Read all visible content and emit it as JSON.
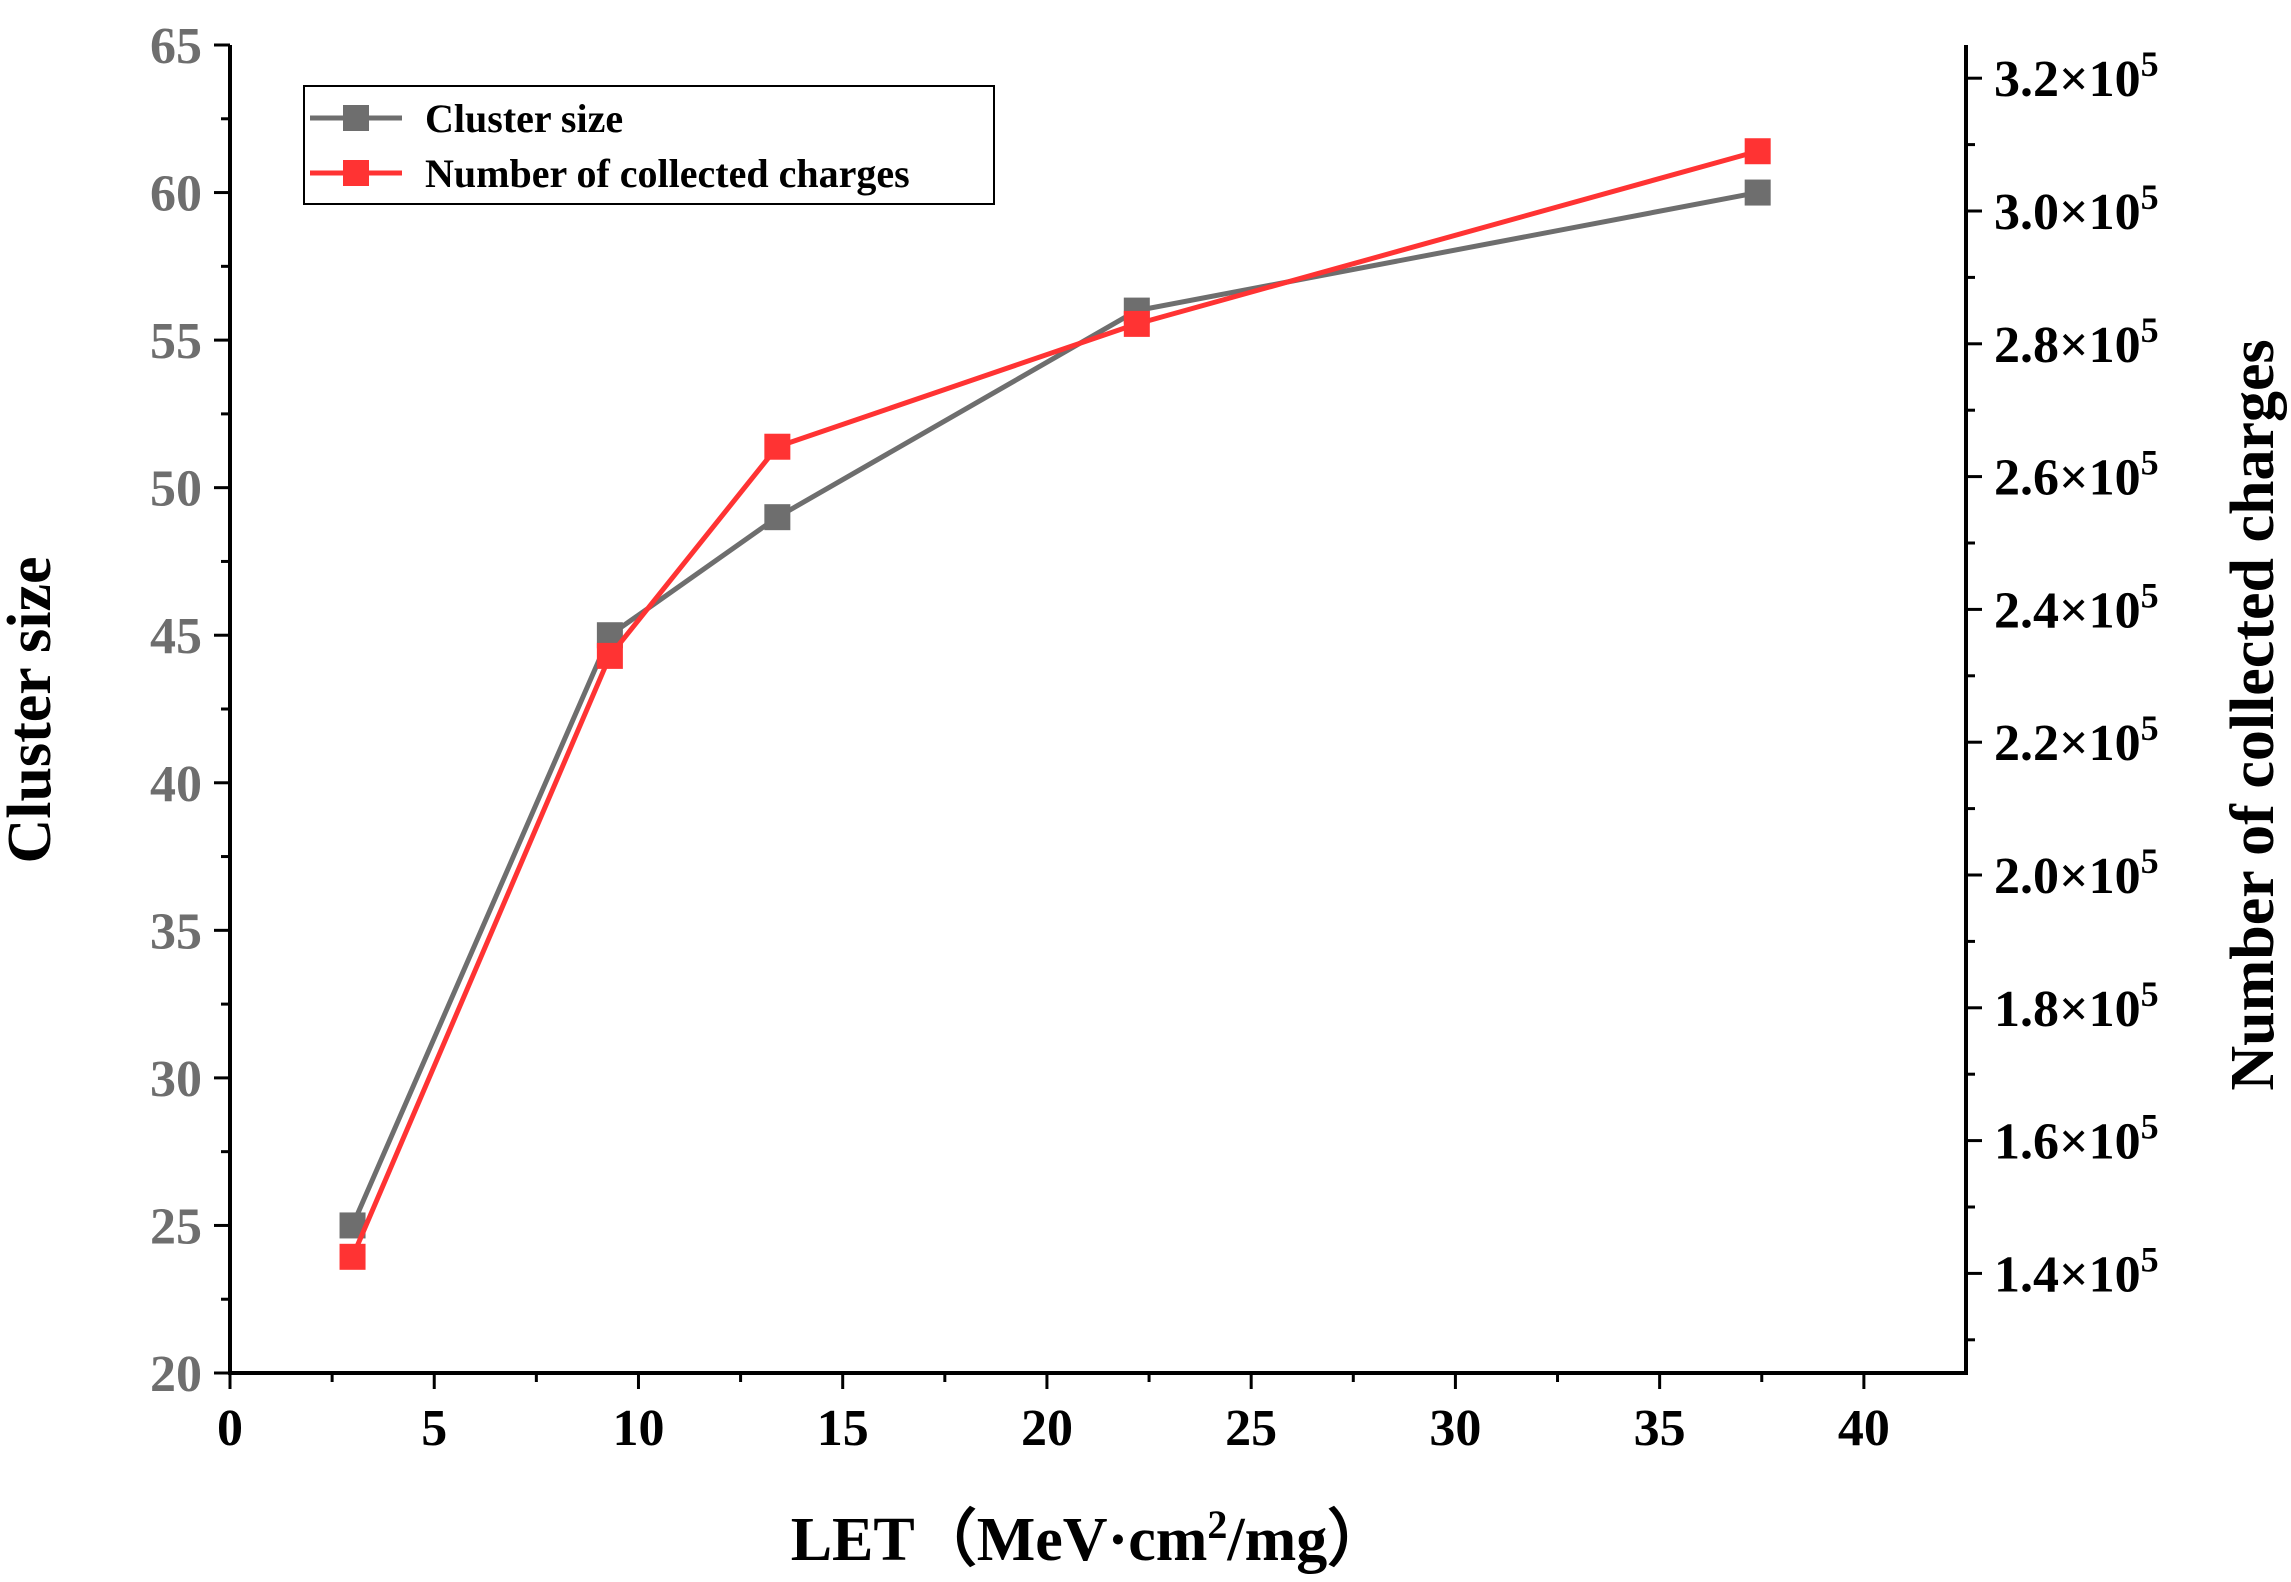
{
  "chart_data": {
    "type": "line",
    "xlabel_prefix": "LET（MeV·cm",
    "xlabel_sup": "2",
    "xlabel_suffix": "/mg）",
    "ylabel_left": "Cluster size",
    "ylabel_right": "Number of collected charges",
    "xlim": [
      0,
      42.5
    ],
    "ylim_left": [
      20,
      65
    ],
    "ylim_right": [
      125000,
      325000
    ],
    "x_ticks": [
      "0",
      "5",
      "10",
      "15",
      "20",
      "25",
      "30",
      "35",
      "40"
    ],
    "y_left_ticks": [
      "20",
      "25",
      "30",
      "35",
      "40",
      "45",
      "50",
      "55",
      "60",
      "65"
    ],
    "y_right_ticks": [
      {
        "mantissa": "1.4",
        "times": "×10",
        "exp": "5",
        "value": 140000
      },
      {
        "mantissa": "1.6",
        "times": "×10",
        "exp": "5",
        "value": 160000
      },
      {
        "mantissa": "1.8",
        "times": "×10",
        "exp": "5",
        "value": 180000
      },
      {
        "mantissa": "2.0",
        "times": "×10",
        "exp": "5",
        "value": 200000
      },
      {
        "mantissa": "2.2",
        "times": "×10",
        "exp": "5",
        "value": 220000
      },
      {
        "mantissa": "2.4",
        "times": "×10",
        "exp": "5",
        "value": 240000
      },
      {
        "mantissa": "2.6",
        "times": "×10",
        "exp": "5",
        "value": 260000
      },
      {
        "mantissa": "2.8",
        "times": "×10",
        "exp": "5",
        "value": 280000
      },
      {
        "mantissa": "3.0",
        "times": "×10",
        "exp": "5",
        "value": 300000
      },
      {
        "mantissa": "3.2",
        "times": "×10",
        "exp": "5",
        "value": 320000
      }
    ],
    "series": [
      {
        "name": "Cluster size",
        "axis": "left",
        "color": "#6e6e6e",
        "x": [
          3,
          9.3,
          13.4,
          22.2,
          37.4
        ],
        "y": [
          25,
          45,
          49,
          56,
          60
        ]
      },
      {
        "name": "Number of collected charges",
        "axis": "right",
        "color": "#ff3333",
        "x": [
          3,
          9.3,
          13.4,
          22.2,
          37.4
        ],
        "y": [
          142500,
          233000,
          264500,
          283000,
          309000
        ]
      }
    ],
    "legend_position": "top-left",
    "grid": false
  }
}
